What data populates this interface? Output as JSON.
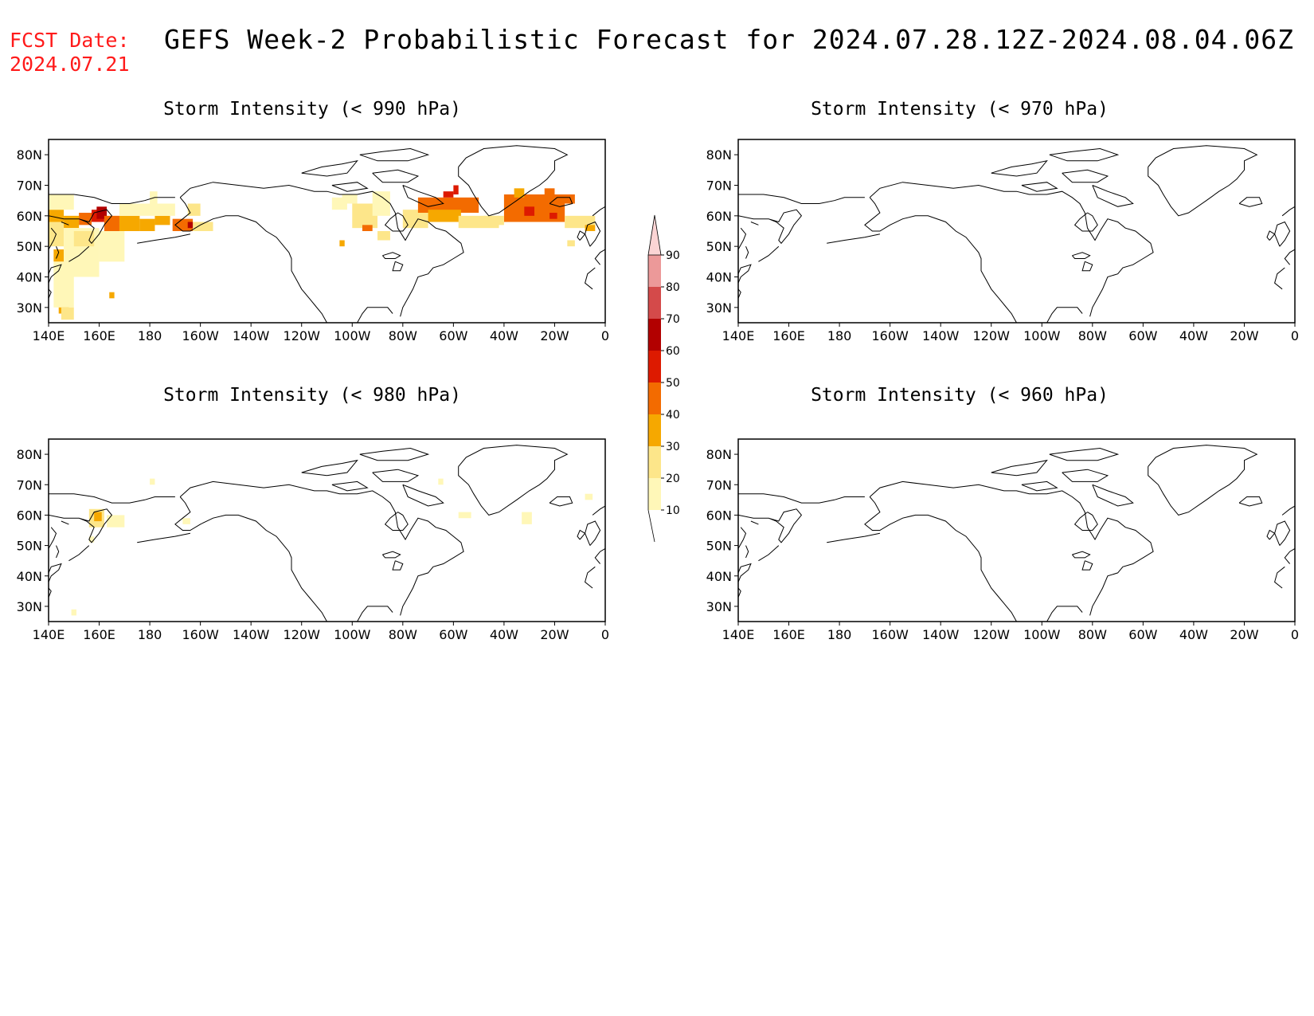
{
  "forecast_date": {
    "label": "FCST Date:",
    "value": "2024.07.21"
  },
  "title": "GEFS Week-2 Probabilistic Forecast for 2024.07.28.12Z-2024.08.04.06Z",
  "panels": [
    {
      "id": "p990",
      "title": "Storm Intensity (< 990 hPa)"
    },
    {
      "id": "p970",
      "title": "Storm Intensity (< 970 hPa)"
    },
    {
      "id": "p980",
      "title": "Storm Intensity (< 980 hPa)"
    },
    {
      "id": "p960",
      "title": "Storm Intensity (< 960 hPa)"
    }
  ],
  "lon_ticks": [
    "140E",
    "160E",
    "180",
    "160W",
    "140W",
    "120W",
    "100W",
    "80W",
    "60W",
    "40W",
    "20W",
    "0"
  ],
  "lat_ticks": [
    "30N",
    "40N",
    "50N",
    "60N",
    "70N",
    "80N"
  ],
  "colorbar": {
    "levels": [
      "10",
      "20",
      "30",
      "40",
      "50",
      "60",
      "70",
      "80",
      "90"
    ],
    "colors": [
      "#fff7b8",
      "#fde68a",
      "#f6a800",
      "#f36b00",
      "#dd1a00",
      "#b20000",
      "#d44a4a",
      "#ec9999",
      "#fbd4d4"
    ]
  },
  "map_data": {
    "domain": {
      "lon": [
        140,
        360
      ],
      "lat": [
        25,
        85
      ]
    },
    "p990": [
      {
        "lon": [
          140,
          146
        ],
        "lat": [
          58,
          62
        ],
        "v": 30
      },
      {
        "lon": [
          146,
          152
        ],
        "lat": [
          56,
          60
        ],
        "v": 30
      },
      {
        "lon": [
          152,
          157
        ],
        "lat": [
          57,
          61
        ],
        "v": 40
      },
      {
        "lon": [
          157,
          162
        ],
        "lat": [
          58,
          62
        ],
        "v": 50
      },
      {
        "lon": [
          159,
          163
        ],
        "lat": [
          59,
          63
        ],
        "v": 60
      },
      {
        "lon": [
          162,
          168
        ],
        "lat": [
          55,
          60
        ],
        "v": 40
      },
      {
        "lon": [
          168,
          176
        ],
        "lat": [
          55,
          60
        ],
        "v": 30
      },
      {
        "lon": [
          176,
          182
        ],
        "lat": [
          55,
          59
        ],
        "v": 30
      },
      {
        "lon": [
          182,
          188
        ],
        "lat": [
          57,
          60
        ],
        "v": 30
      },
      {
        "lon": [
          189,
          197
        ],
        "lat": [
          55,
          59
        ],
        "v": 40
      },
      {
        "lon": [
          195,
          198
        ],
        "lat": [
          56,
          58
        ],
        "v": 60
      },
      {
        "lon": [
          142,
          146
        ],
        "lat": [
          45,
          49
        ],
        "v": 30
      },
      {
        "lon": [
          144,
          148
        ],
        "lat": [
          28,
          32
        ],
        "v": 30
      },
      {
        "lon": [
          140,
          150
        ],
        "lat": [
          62,
          67
        ],
        "v": 10
      },
      {
        "lon": [
          140,
          146
        ],
        "lat": [
          50,
          58
        ],
        "v": 20
      },
      {
        "lon": [
          146,
          160
        ],
        "lat": [
          40,
          56
        ],
        "v": 10
      },
      {
        "lon": [
          150,
          158
        ],
        "lat": [
          50,
          55
        ],
        "v": 20
      },
      {
        "lon": [
          160,
          170
        ],
        "lat": [
          45,
          55
        ],
        "v": 10
      },
      {
        "lon": [
          142,
          150
        ],
        "lat": [
          30,
          45
        ],
        "v": 10
      },
      {
        "lon": [
          145,
          150
        ],
        "lat": [
          26,
          30
        ],
        "v": 20
      },
      {
        "lon": [
          168,
          190
        ],
        "lat": [
          60,
          64
        ],
        "v": 10
      },
      {
        "lon": [
          180,
          183
        ],
        "lat": [
          63,
          68
        ],
        "v": 10
      },
      {
        "lon": [
          195,
          200
        ],
        "lat": [
          60,
          64
        ],
        "v": 20
      },
      {
        "lon": [
          197,
          205
        ],
        "lat": [
          55,
          58
        ],
        "v": 20
      },
      {
        "lon": [
          164,
          166
        ],
        "lat": [
          33,
          35
        ],
        "v": 30
      },
      {
        "lon": [
          256,
          262
        ],
        "lat": [
          64,
          67
        ],
        "v": 10
      },
      {
        "lon": [
          252,
          258
        ],
        "lat": [
          62,
          66
        ],
        "v": 10
      },
      {
        "lon": [
          260,
          270
        ],
        "lat": [
          56,
          64
        ],
        "v": 20
      },
      {
        "lon": [
          264,
          268
        ],
        "lat": [
          55,
          57
        ],
        "v": 40
      },
      {
        "lon": [
          270,
          275
        ],
        "lat": [
          52,
          55
        ],
        "v": 20
      },
      {
        "lon": [
          255,
          257
        ],
        "lat": [
          50,
          52
        ],
        "v": 30
      },
      {
        "lon": [
          268,
          275
        ],
        "lat": [
          60,
          68
        ],
        "v": 10
      },
      {
        "lon": [
          280,
          290
        ],
        "lat": [
          56,
          62
        ],
        "v": 20
      },
      {
        "lon": [
          286,
          310
        ],
        "lat": [
          61,
          66
        ],
        "v": 40
      },
      {
        "lon": [
          290,
          303
        ],
        "lat": [
          58,
          62
        ],
        "v": 30
      },
      {
        "lon": [
          296,
          300
        ],
        "lat": [
          66,
          68
        ],
        "v": 50
      },
      {
        "lon": [
          300,
          302
        ],
        "lat": [
          67,
          70
        ],
        "v": 50
      },
      {
        "lon": [
          302,
          318
        ],
        "lat": [
          56,
          60
        ],
        "v": 20
      },
      {
        "lon": [
          320,
          344
        ],
        "lat": [
          58,
          67
        ],
        "v": 40
      },
      {
        "lon": [
          328,
          332
        ],
        "lat": [
          60,
          63
        ],
        "v": 50
      },
      {
        "lon": [
          338,
          341
        ],
        "lat": [
          59,
          61
        ],
        "v": 50
      },
      {
        "lon": [
          340,
          348
        ],
        "lat": [
          64,
          67
        ],
        "v": 40
      },
      {
        "lon": [
          344,
          356
        ],
        "lat": [
          56,
          60
        ],
        "v": 20
      },
      {
        "lon": [
          352,
          356
        ],
        "lat": [
          55,
          57
        ],
        "v": 30
      },
      {
        "lon": [
          345,
          348
        ],
        "lat": [
          50,
          52
        ],
        "v": 20
      },
      {
        "lon": [
          312,
          320
        ],
        "lat": [
          57,
          60
        ],
        "v": 20
      },
      {
        "lon": [
          324,
          328
        ],
        "lat": [
          66,
          69
        ],
        "v": 30
      },
      {
        "lon": [
          336,
          340
        ],
        "lat": [
          67,
          69
        ],
        "v": 40
      }
    ],
    "p980": [
      {
        "lon": [
          156,
          162
        ],
        "lat": [
          56,
          62
        ],
        "v": 20
      },
      {
        "lon": [
          158,
          161
        ],
        "lat": [
          58,
          61
        ],
        "v": 30
      },
      {
        "lon": [
          163,
          170
        ],
        "lat": [
          56,
          60
        ],
        "v": 10
      },
      {
        "lon": [
          156,
          158
        ],
        "lat": [
          51,
          53
        ],
        "v": 10
      },
      {
        "lon": [
          180,
          182
        ],
        "lat": [
          70,
          72
        ],
        "v": 10
      },
      {
        "lon": [
          193,
          196
        ],
        "lat": [
          57,
          59
        ],
        "v": 10
      },
      {
        "lon": [
          149,
          151
        ],
        "lat": [
          27,
          29
        ],
        "v": 10
      },
      {
        "lon": [
          294,
          296
        ],
        "lat": [
          70,
          72
        ],
        "v": 10
      },
      {
        "lon": [
          302,
          307
        ],
        "lat": [
          59,
          61
        ],
        "v": 10
      },
      {
        "lon": [
          327,
          331
        ],
        "lat": [
          57,
          61
        ],
        "v": 10
      },
      {
        "lon": [
          352,
          355
        ],
        "lat": [
          65,
          67
        ],
        "v": 10
      }
    ],
    "p970": [],
    "p960": []
  }
}
